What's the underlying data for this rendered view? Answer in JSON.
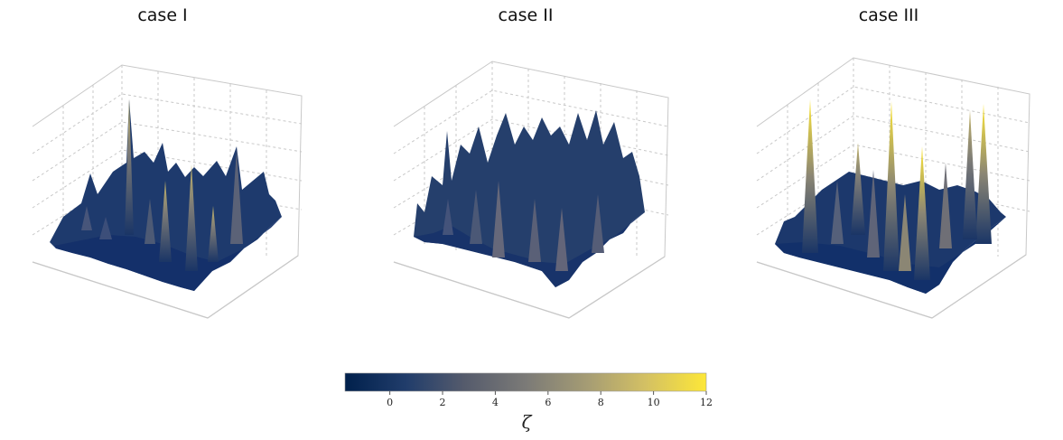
{
  "panels": [
    {
      "title": "case I"
    },
    {
      "title": "case II"
    },
    {
      "title": "case III"
    }
  ],
  "colorbar": {
    "label": "ζ",
    "ticks": [
      "0",
      "2",
      "4",
      "6",
      "8",
      "10",
      "12"
    ],
    "range": [
      -1.7,
      12
    ],
    "colormap": "cividis",
    "colors": [
      "#00204c",
      "#213d6b",
      "#555b6c",
      "#7b7a77",
      "#a59c74",
      "#d3c064",
      "#fde738"
    ]
  },
  "chart_data": [
    {
      "type": "surface",
      "title": "case I",
      "z_range": [
        -1.7,
        8
      ],
      "peaks": [
        8.0,
        5.2,
        4.5,
        4.0,
        3.8
      ]
    },
    {
      "type": "surface",
      "title": "case II",
      "z_range": [
        -1.7,
        5
      ],
      "peaks": [
        4.5,
        4.2,
        4.0,
        3.9,
        3.7
      ]
    },
    {
      "type": "surface",
      "title": "case III",
      "z_range": [
        -1.7,
        12
      ],
      "peaks": [
        12.0,
        11.5,
        11.0,
        10.5,
        10.0
      ]
    }
  ]
}
